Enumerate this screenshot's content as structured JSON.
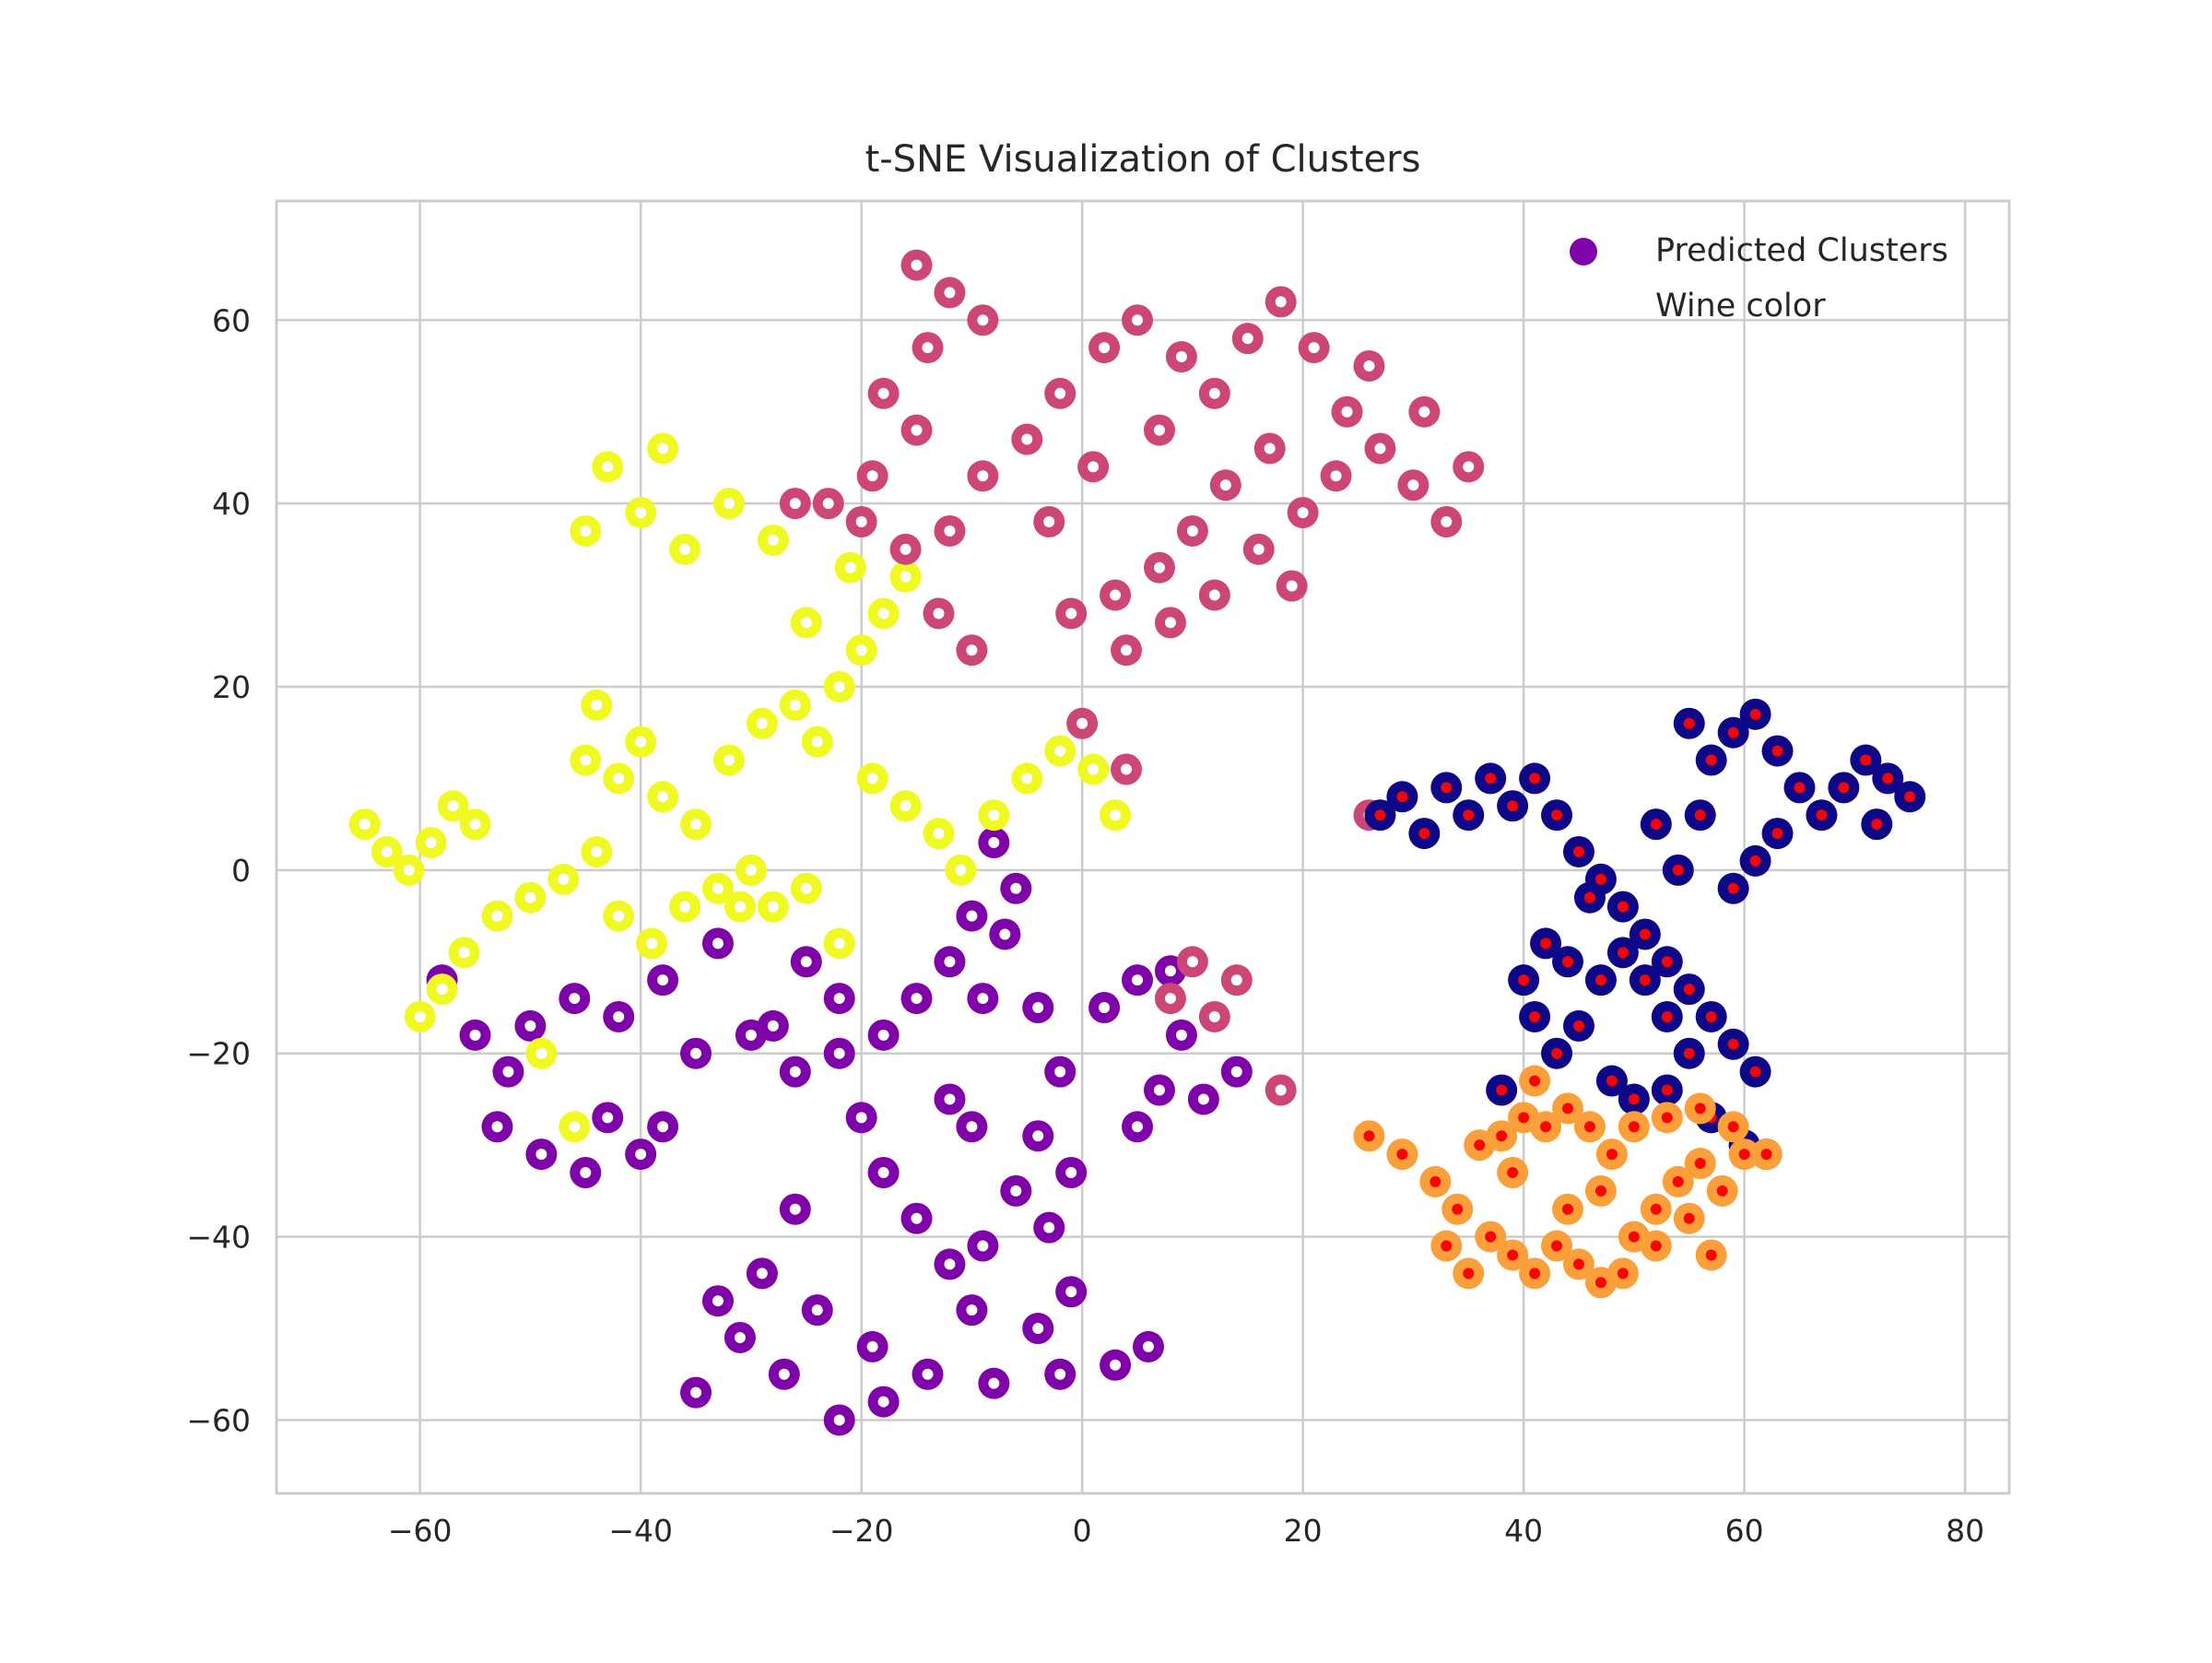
{
  "chart_data": {
    "type": "scatter",
    "title": "t-SNE Visualization of Clusters",
    "xlabel": "",
    "ylabel": "",
    "xlim": [
      -73,
      84
    ],
    "ylim": [
      -68,
      73
    ],
    "xticks": [
      -60,
      -40,
      -20,
      0,
      20,
      40,
      60,
      80
    ],
    "yticks": [
      -60,
      -40,
      -20,
      0,
      20,
      40,
      60
    ],
    "xtick_labels": [
      "−60",
      "−40",
      "−20",
      "0",
      "20",
      "40",
      "60",
      "80"
    ],
    "ytick_labels": [
      "−60",
      "−40",
      "−20",
      "0",
      "20",
      "40",
      "60"
    ],
    "grid": true,
    "legend": {
      "placement": "top-right",
      "entries": [
        {
          "label": "Predicted Clusters",
          "marker_color": "#7e03a8"
        },
        {
          "label": "Wine color",
          "marker_color": "#ffffff"
        }
      ]
    },
    "series": [
      {
        "color": "#7e03a8",
        "inner_color": "#ffffff",
        "points": [
          [
            -58,
            -12
          ],
          [
            -55,
            -18
          ],
          [
            -52,
            -22
          ],
          [
            -50,
            -17
          ],
          [
            -46,
            -14
          ],
          [
            -43,
            -27
          ],
          [
            -40,
            -31
          ],
          [
            -38,
            -28
          ],
          [
            -45,
            -33
          ],
          [
            -49,
            -31
          ],
          [
            -30,
            -18
          ],
          [
            -26,
            -22
          ],
          [
            -22,
            -20
          ],
          [
            -20,
            -27
          ],
          [
            -18,
            -33
          ],
          [
            -15,
            -38
          ],
          [
            -12,
            -43
          ],
          [
            -9,
            -41
          ],
          [
            -6,
            -35
          ],
          [
            -3,
            -39
          ],
          [
            -1,
            -46
          ],
          [
            -4,
            -50
          ],
          [
            -10,
            -48
          ],
          [
            -14,
            -55
          ],
          [
            -18,
            -58
          ],
          [
            -22,
            -60
          ],
          [
            -27,
            -55
          ],
          [
            -31,
            -51
          ],
          [
            -33,
            -47
          ],
          [
            -29,
            -44
          ],
          [
            -24,
            -48
          ],
          [
            -19,
            -52
          ],
          [
            -35,
            -57
          ],
          [
            -8,
            -56
          ],
          [
            -2,
            -55
          ],
          [
            3,
            -54
          ],
          [
            6,
            -52
          ],
          [
            -12,
            -10
          ],
          [
            -9,
            -14
          ],
          [
            -7,
            -7
          ],
          [
            -4,
            -15
          ],
          [
            -2,
            -22
          ],
          [
            2,
            -15
          ],
          [
            5,
            -12
          ],
          [
            8,
            -11
          ],
          [
            9,
            -18
          ],
          [
            7,
            -24
          ],
          [
            5,
            -28
          ],
          [
            11,
            -25
          ],
          [
            14,
            -22
          ],
          [
            -12,
            -25
          ],
          [
            -10,
            -28
          ],
          [
            -15,
            -14
          ],
          [
            -18,
            -18
          ],
          [
            -25,
            -10
          ],
          [
            -22,
            -14
          ],
          [
            -33,
            -8
          ],
          [
            -38,
            -12
          ],
          [
            -35,
            -20
          ],
          [
            -26,
            -37
          ],
          [
            -42,
            -16
          ],
          [
            -53,
            -28
          ],
          [
            -8,
            3
          ],
          [
            -6,
            -2
          ],
          [
            -10,
            -5
          ],
          [
            -4,
            -29
          ],
          [
            -1,
            -33
          ],
          [
            -28,
            -17
          ]
        ]
      },
      {
        "color": "#f0f921",
        "inner_color": "#ffffff",
        "points": [
          [
            -65,
            5
          ],
          [
            -63,
            2
          ],
          [
            -61,
            0
          ],
          [
            -59,
            3
          ],
          [
            -57,
            7
          ],
          [
            -55,
            5
          ],
          [
            -60,
            -16
          ],
          [
            -58,
            -13
          ],
          [
            -56,
            -9
          ],
          [
            -53,
            -5
          ],
          [
            -50,
            -3
          ],
          [
            -47,
            -1
          ],
          [
            -44,
            2
          ],
          [
            -42,
            -5
          ],
          [
            -39,
            -8
          ],
          [
            -36,
            -4
          ],
          [
            -33,
            -2
          ],
          [
            -30,
            0
          ],
          [
            -28,
            -4
          ],
          [
            -25,
            -2
          ],
          [
            -22,
            -8
          ],
          [
            -45,
            12
          ],
          [
            -42,
            10
          ],
          [
            -40,
            14
          ],
          [
            -44,
            18
          ],
          [
            -38,
            8
          ],
          [
            -32,
            12
          ],
          [
            -29,
            16
          ],
          [
            -26,
            18
          ],
          [
            -24,
            14
          ],
          [
            -22,
            20
          ],
          [
            -20,
            24
          ],
          [
            -18,
            28
          ],
          [
            -16,
            32
          ],
          [
            -21,
            33
          ],
          [
            -25,
            27
          ],
          [
            -28,
            36
          ],
          [
            -32,
            40
          ],
          [
            -36,
            35
          ],
          [
            -40,
            39
          ],
          [
            -43,
            44
          ],
          [
            -38,
            46
          ],
          [
            -45,
            37
          ],
          [
            -19,
            10
          ],
          [
            -16,
            7
          ],
          [
            -13,
            4
          ],
          [
            -11,
            0
          ],
          [
            -8,
            6
          ],
          [
            -5,
            10
          ],
          [
            -2,
            13
          ],
          [
            1,
            11
          ],
          [
            3,
            6
          ],
          [
            -49,
            -20
          ],
          [
            -46,
            -28
          ],
          [
            -31,
            -4
          ],
          [
            -35,
            5
          ]
        ]
      },
      {
        "color": "#cc4778",
        "inner_color": "#ffffff",
        "points": [
          [
            -15,
            66
          ],
          [
            -12,
            63
          ],
          [
            -9,
            60
          ],
          [
            -14,
            57
          ],
          [
            -18,
            52
          ],
          [
            -15,
            48
          ],
          [
            -19,
            43
          ],
          [
            -23,
            40
          ],
          [
            -20,
            38
          ],
          [
            -16,
            35
          ],
          [
            -12,
            37
          ],
          [
            -9,
            43
          ],
          [
            -5,
            47
          ],
          [
            -2,
            52
          ],
          [
            2,
            57
          ],
          [
            5,
            60
          ],
          [
            9,
            56
          ],
          [
            12,
            52
          ],
          [
            15,
            58
          ],
          [
            18,
            62
          ],
          [
            21,
            57
          ],
          [
            24,
            50
          ],
          [
            27,
            46
          ],
          [
            30,
            42
          ],
          [
            33,
            38
          ],
          [
            35,
            44
          ],
          [
            31,
            50
          ],
          [
            26,
            55
          ],
          [
            17,
            46
          ],
          [
            13,
            42
          ],
          [
            10,
            37
          ],
          [
            7,
            33
          ],
          [
            3,
            30
          ],
          [
            -1,
            28
          ],
          [
            4,
            24
          ],
          [
            8,
            27
          ],
          [
            12,
            30
          ],
          [
            16,
            35
          ],
          [
            20,
            39
          ],
          [
            23,
            43
          ],
          [
            -26,
            40
          ],
          [
            -13,
            28
          ],
          [
            -10,
            24
          ],
          [
            0,
            16
          ],
          [
            4,
            11
          ],
          [
            10,
            -10
          ],
          [
            14,
            -12
          ],
          [
            12,
            -16
          ],
          [
            8,
            -14
          ],
          [
            26,
            6
          ],
          [
            18,
            -24
          ],
          [
            -3,
            38
          ],
          [
            1,
            44
          ],
          [
            7,
            48
          ],
          [
            19,
            31
          ]
        ]
      },
      {
        "color": "#0d0887",
        "inner_color": "#ff0000",
        "points": [
          [
            27,
            6
          ],
          [
            29,
            8
          ],
          [
            31,
            4
          ],
          [
            33,
            9
          ],
          [
            35,
            6
          ],
          [
            37,
            10
          ],
          [
            39,
            7
          ],
          [
            41,
            10
          ],
          [
            43,
            6
          ],
          [
            45,
            2
          ],
          [
            47,
            -1
          ],
          [
            49,
            -4
          ],
          [
            51,
            -7
          ],
          [
            53,
            -10
          ],
          [
            55,
            -13
          ],
          [
            57,
            -16
          ],
          [
            59,
            -19
          ],
          [
            61,
            -22
          ],
          [
            55,
            16
          ],
          [
            57,
            12
          ],
          [
            59,
            15
          ],
          [
            61,
            17
          ],
          [
            63,
            13
          ],
          [
            65,
            9
          ],
          [
            63,
            4
          ],
          [
            61,
            1
          ],
          [
            59,
            -2
          ],
          [
            67,
            6
          ],
          [
            69,
            9
          ],
          [
            71,
            12
          ],
          [
            73,
            10
          ],
          [
            75,
            8
          ],
          [
            72,
            5
          ],
          [
            42,
            -8
          ],
          [
            40,
            -12
          ],
          [
            41,
            -16
          ],
          [
            43,
            -20
          ],
          [
            45,
            -17
          ],
          [
            47,
            -12
          ],
          [
            49,
            -9
          ],
          [
            51,
            -12
          ],
          [
            53,
            -16
          ],
          [
            55,
            -20
          ],
          [
            53,
            -24
          ],
          [
            50,
            -25
          ],
          [
            52,
            5
          ],
          [
            54,
            0
          ],
          [
            56,
            6
          ],
          [
            38,
            -24
          ],
          [
            57,
            -27
          ],
          [
            62,
            -31
          ],
          [
            60,
            -30
          ],
          [
            48,
            -23
          ],
          [
            46,
            -3
          ],
          [
            44,
            -10
          ]
        ]
      },
      {
        "color": "#fb9f3a",
        "inner_color": "#ff0000",
        "points": [
          [
            26,
            -29
          ],
          [
            29,
            -31
          ],
          [
            32,
            -34
          ],
          [
            34,
            -37
          ],
          [
            33,
            -41
          ],
          [
            35,
            -44
          ],
          [
            37,
            -40
          ],
          [
            39,
            -42
          ],
          [
            41,
            -44
          ],
          [
            43,
            -41
          ],
          [
            45,
            -43
          ],
          [
            47,
            -45
          ],
          [
            49,
            -44
          ],
          [
            50,
            -40
          ],
          [
            52,
            -37
          ],
          [
            54,
            -34
          ],
          [
            56,
            -32
          ],
          [
            58,
            -35
          ],
          [
            60,
            -31
          ],
          [
            62,
            -31
          ],
          [
            59,
            -28
          ],
          [
            56,
            -26
          ],
          [
            53,
            -27
          ],
          [
            50,
            -28
          ],
          [
            48,
            -31
          ],
          [
            46,
            -28
          ],
          [
            44,
            -26
          ],
          [
            42,
            -28
          ],
          [
            40,
            -27
          ],
          [
            38,
            -29
          ],
          [
            36,
            -30
          ],
          [
            41,
            -23
          ],
          [
            47,
            -35
          ],
          [
            52,
            -41
          ],
          [
            55,
            -38
          ],
          [
            57,
            -42
          ],
          [
            44,
            -37
          ],
          [
            39,
            -33
          ]
        ]
      }
    ]
  }
}
